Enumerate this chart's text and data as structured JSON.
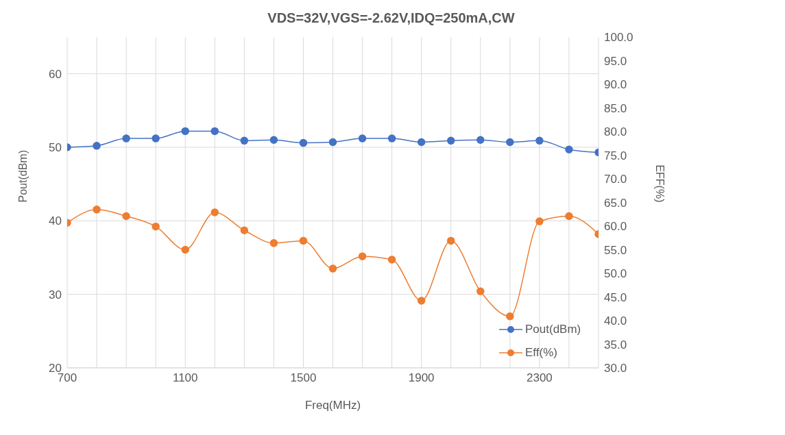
{
  "chart_data": {
    "type": "line",
    "title": "VDS=32V,VGS=-2.62V,IDQ=250mA,CW",
    "xlabel": "Freq(MHz)",
    "ylabel": "Pout(dBm)",
    "y2label": "EFF(%)",
    "x": [
      700,
      800,
      900,
      1000,
      1100,
      1200,
      1300,
      1400,
      1500,
      1600,
      1700,
      1800,
      1900,
      2000,
      2100,
      2200,
      2300,
      2400,
      2500
    ],
    "series": [
      {
        "name": "Pout(dBm)",
        "color": "#4472c4",
        "values": [
          50.0,
          50.2,
          51.2,
          51.2,
          52.2,
          52.2,
          50.9,
          51.0,
          50.6,
          50.7,
          51.2,
          51.2,
          50.7,
          50.9,
          51.0,
          50.7,
          50.9,
          49.7,
          49.3
        ]
      },
      {
        "name": "Eff(%)",
        "color": "#ed7d31",
        "axis": "y2",
        "values": [
          60.7,
          63.5,
          62.1,
          59.9,
          55.0,
          62.9,
          59.1,
          56.4,
          56.9,
          51.0,
          53.6,
          52.9,
          44.2,
          56.9,
          46.2,
          40.9,
          61.0,
          62.1,
          58.3
        ]
      }
    ],
    "xlim": [
      700,
      2500
    ],
    "xticks": [
      700,
      {
        "value": 800,
        "label": null
      },
      {
        "value": 900,
        "label": null
      },
      {
        "value": 1000,
        "label": null
      },
      1100,
      {
        "value": 1200,
        "label": null
      },
      {
        "value": 1300,
        "label": null
      },
      {
        "value": 1400,
        "label": null
      },
      1500,
      {
        "value": 1600,
        "label": null
      },
      {
        "value": 1700,
        "label": null
      },
      {
        "value": 1800,
        "label": null
      },
      1900,
      {
        "value": 2000,
        "label": null
      },
      {
        "value": 2100,
        "label": null
      },
      {
        "value": 2200,
        "label": null
      },
      2300,
      {
        "value": 2400,
        "label": null
      },
      {
        "value": 2500,
        "label": null
      }
    ],
    "ylim": [
      20,
      65
    ],
    "yticks": [
      20,
      30,
      40,
      50,
      60
    ],
    "y2lim": [
      30,
      100
    ],
    "y2ticks": [
      {
        "value": 30,
        "label": "30.0"
      },
      {
        "value": 35,
        "label": "35.0"
      },
      {
        "value": 40,
        "label": "40.0"
      },
      {
        "value": 45,
        "label": "45.0"
      },
      {
        "value": 50,
        "label": "50.0"
      },
      {
        "value": 55,
        "label": "55.0"
      },
      {
        "value": 60,
        "label": "60.0"
      },
      {
        "value": 65,
        "label": "65.0"
      },
      {
        "value": 70,
        "label": "70.0"
      },
      {
        "value": 75,
        "label": "75.0"
      },
      {
        "value": 80,
        "label": "80.0"
      },
      {
        "value": 85,
        "label": "85.0"
      },
      {
        "value": 90,
        "label": "90.0"
      },
      {
        "value": 95,
        "label": "95.0"
      },
      {
        "value": 100,
        "label": "100.0"
      }
    ],
    "grid": true,
    "legend": "bottom right",
    "marker": "circle",
    "line_style": "solid"
  }
}
